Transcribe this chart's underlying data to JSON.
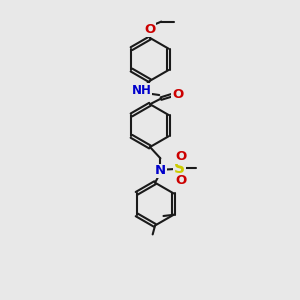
{
  "bg_color": "#e8e8e8",
  "bond_color": "#1a1a1a",
  "bond_width": 1.5,
  "dbo": 0.055,
  "atom_colors": {
    "N": "#0000cc",
    "O": "#cc0000",
    "S": "#cccc00",
    "C": "#1a1a1a",
    "H": "#1a1a1a"
  },
  "font_size": 8.5,
  "fig_width": 3.0,
  "fig_height": 3.0,
  "dpi": 100
}
